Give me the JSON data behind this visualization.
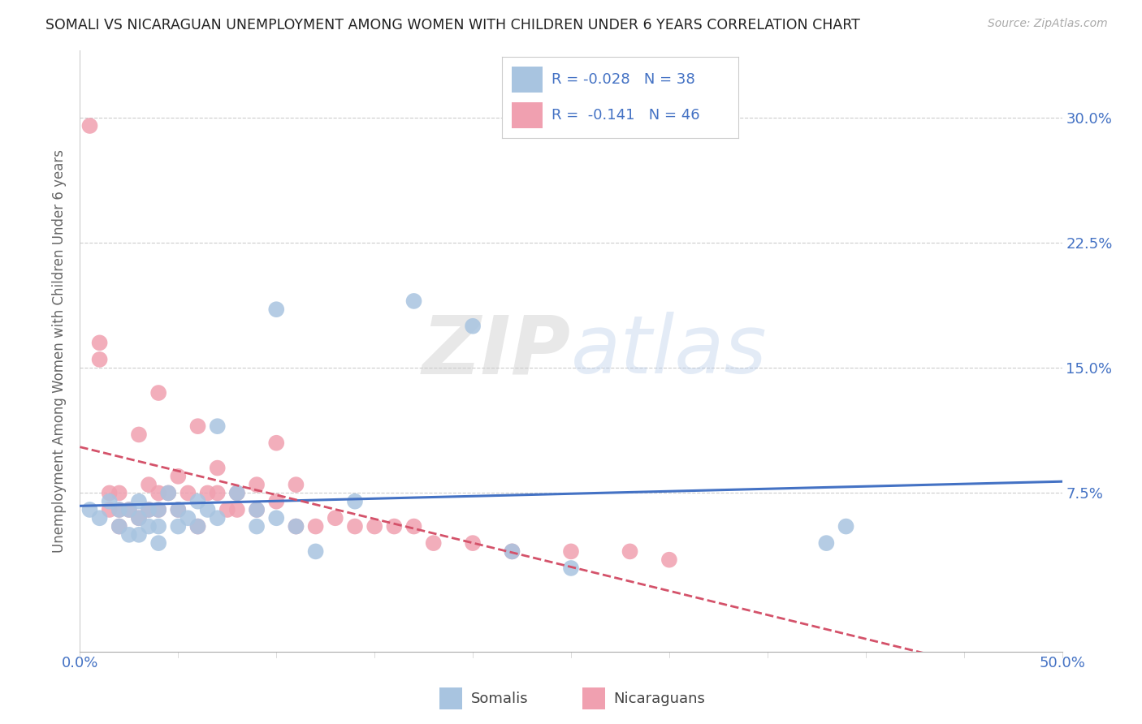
{
  "title": "SOMALI VS NICARAGUAN UNEMPLOYMENT AMONG WOMEN WITH CHILDREN UNDER 6 YEARS CORRELATION CHART",
  "source": "Source: ZipAtlas.com",
  "ylabel": "Unemployment Among Women with Children Under 6 years",
  "xlim": [
    0.0,
    0.5
  ],
  "ylim": [
    -0.02,
    0.34
  ],
  "ytick_positions": [
    0.075,
    0.15,
    0.225,
    0.3
  ],
  "ytick_labels": [
    "7.5%",
    "15.0%",
    "22.5%",
    "30.0%"
  ],
  "grid_color": "#cccccc",
  "background_color": "#ffffff",
  "somali_color": "#a8c4e0",
  "nicaraguan_color": "#f0a0b0",
  "somali_line_color": "#4472c4",
  "nicaraguan_line_color": "#d4526a",
  "tick_color": "#4472c4",
  "legend_text_color": "#4472c4",
  "legend_R_somali": "-0.028",
  "legend_N_somali": "38",
  "legend_R_nicaraguan": "-0.141",
  "legend_N_nicaraguan": "46",
  "watermark_zip": "ZIP",
  "watermark_atlas": "atlas",
  "somali_x": [
    0.005,
    0.01,
    0.015,
    0.02,
    0.02,
    0.025,
    0.025,
    0.03,
    0.03,
    0.03,
    0.035,
    0.035,
    0.04,
    0.04,
    0.04,
    0.045,
    0.05,
    0.05,
    0.055,
    0.06,
    0.06,
    0.065,
    0.07,
    0.07,
    0.08,
    0.09,
    0.09,
    0.1,
    0.1,
    0.11,
    0.12,
    0.14,
    0.17,
    0.2,
    0.22,
    0.25,
    0.38,
    0.39
  ],
  "somali_y": [
    0.065,
    0.06,
    0.07,
    0.055,
    0.065,
    0.05,
    0.065,
    0.05,
    0.06,
    0.07,
    0.055,
    0.065,
    0.045,
    0.055,
    0.065,
    0.075,
    0.055,
    0.065,
    0.06,
    0.055,
    0.07,
    0.065,
    0.06,
    0.115,
    0.075,
    0.055,
    0.065,
    0.06,
    0.185,
    0.055,
    0.04,
    0.07,
    0.19,
    0.175,
    0.04,
    0.03,
    0.045,
    0.055
  ],
  "nicaraguan_x": [
    0.005,
    0.01,
    0.01,
    0.015,
    0.015,
    0.02,
    0.02,
    0.02,
    0.025,
    0.03,
    0.03,
    0.035,
    0.035,
    0.04,
    0.04,
    0.04,
    0.045,
    0.05,
    0.05,
    0.055,
    0.06,
    0.06,
    0.065,
    0.07,
    0.07,
    0.075,
    0.08,
    0.08,
    0.09,
    0.09,
    0.1,
    0.1,
    0.11,
    0.11,
    0.12,
    0.13,
    0.14,
    0.15,
    0.16,
    0.17,
    0.18,
    0.2,
    0.22,
    0.25,
    0.28,
    0.3
  ],
  "nicaraguan_y": [
    0.295,
    0.155,
    0.165,
    0.065,
    0.075,
    0.055,
    0.065,
    0.075,
    0.065,
    0.06,
    0.11,
    0.065,
    0.08,
    0.065,
    0.075,
    0.135,
    0.075,
    0.065,
    0.085,
    0.075,
    0.055,
    0.115,
    0.075,
    0.075,
    0.09,
    0.065,
    0.065,
    0.075,
    0.065,
    0.08,
    0.07,
    0.105,
    0.055,
    0.08,
    0.055,
    0.06,
    0.055,
    0.055,
    0.055,
    0.055,
    0.045,
    0.045,
    0.04,
    0.04,
    0.04,
    0.035
  ]
}
